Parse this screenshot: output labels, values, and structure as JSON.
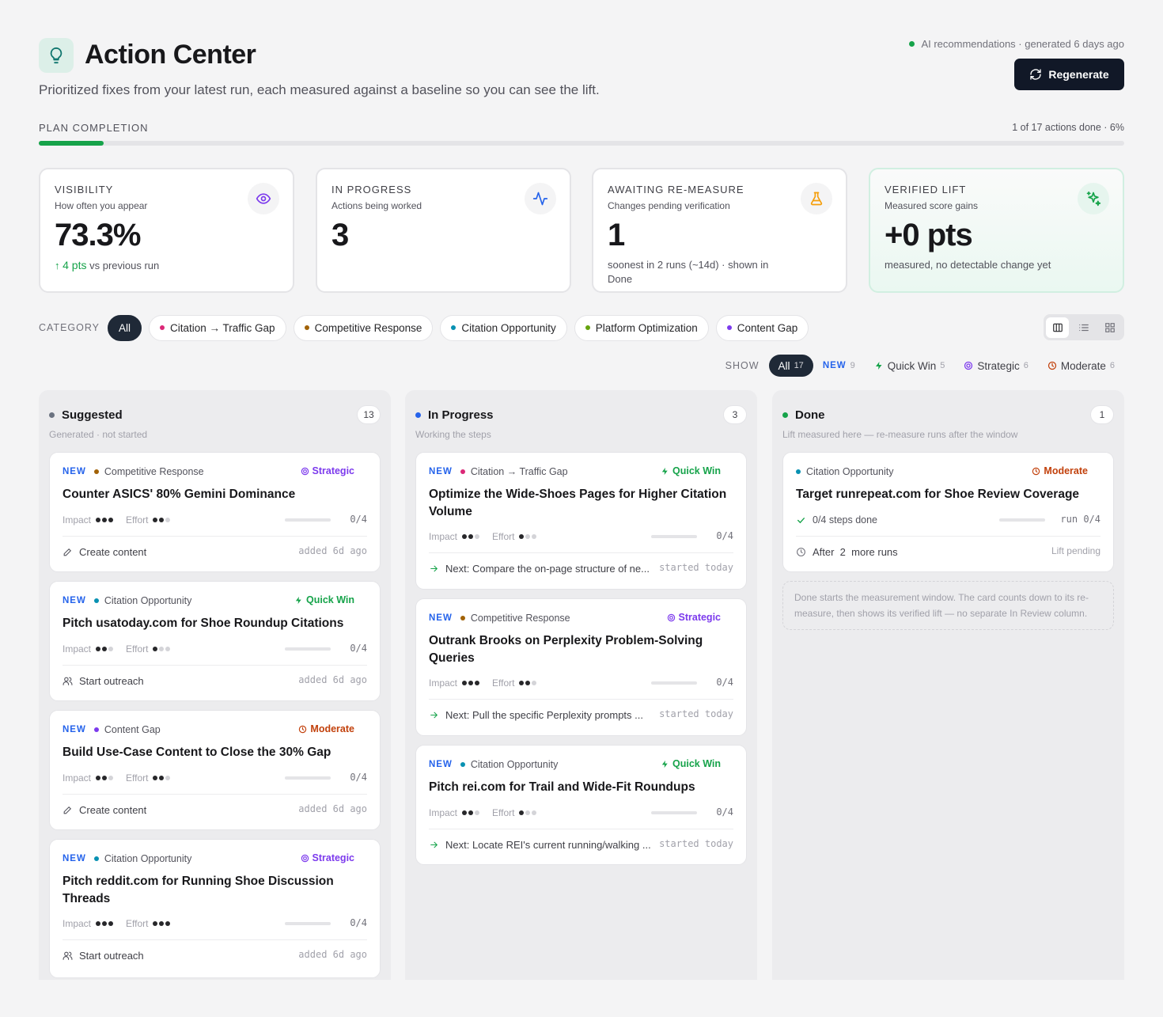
{
  "header": {
    "title": "Action Center",
    "subtitle": "Prioritized fixes from your latest run, each measured against a baseline so you can see the lift.",
    "generated": "AI recommendations · generated 6 days ago",
    "regenerate_label": "Regenerate"
  },
  "plan": {
    "label": "PLAN COMPLETION",
    "status": "1 of 17 actions done · 6%",
    "progress": 0.06
  },
  "stats": [
    {
      "label": "VISIBILITY",
      "sub": "How often you appear",
      "value": "73.3%",
      "delta": "4 pts",
      "delta_suffix": "vs previous run",
      "icon": "eye-icon"
    },
    {
      "label": "IN PROGRESS",
      "sub": "Actions being worked",
      "value": "3",
      "icon": "activity-icon"
    },
    {
      "label": "AWAITING RE-MEASURE",
      "sub": "Changes pending verification",
      "value": "1",
      "foot": "soonest in 2 runs (~14d) · shown in Done",
      "icon": "flask-icon"
    },
    {
      "label": "VERIFIED LIFT",
      "sub": "Measured score gains",
      "value": "+0 pts",
      "foot": "measured, no detectable change yet",
      "icon": "sparkles-icon"
    }
  ],
  "category": {
    "label": "CATEGORY",
    "chips": [
      {
        "label": "All",
        "active": true
      },
      {
        "label": "Citation → Traffic Gap",
        "color": "#db2777"
      },
      {
        "label": "Competitive Response",
        "color": "#a16207"
      },
      {
        "label": "Citation Opportunity",
        "color": "#0891b2"
      },
      {
        "label": "Platform Optimization",
        "color": "#65a30d"
      },
      {
        "label": "Content Gap",
        "color": "#7c3aed"
      }
    ]
  },
  "show": {
    "label": "SHOW",
    "all": {
      "label": "All",
      "count": "17"
    },
    "new": {
      "label": "NEW",
      "count": "9"
    },
    "quick_win": {
      "label": "Quick Win",
      "count": "5"
    },
    "strategic": {
      "label": "Strategic",
      "count": "6"
    },
    "moderate": {
      "label": "Moderate",
      "count": "6"
    }
  },
  "columns": [
    {
      "title": "Suggested",
      "count": "13",
      "subtitle": "Generated · not started",
      "color": "#6b7280",
      "cards": [
        {
          "new": "NEW",
          "category": "Competitive Response",
          "cat_color": "#a16207",
          "tag": "Strategic",
          "title": "Counter ASICS' 80% Gemini Dominance",
          "impact": 3,
          "effort": 2,
          "steps": "0/4",
          "action": "Create content",
          "when": "added 6d ago"
        },
        {
          "new": "NEW",
          "category": "Citation Opportunity",
          "cat_color": "#0891b2",
          "tag": "Quick Win",
          "title": "Pitch usatoday.com for Shoe Roundup Citations",
          "impact": 2,
          "effort": 1,
          "steps": "0/4",
          "action": "Start outreach",
          "when": "added 6d ago"
        },
        {
          "new": "NEW",
          "category": "Content Gap",
          "cat_color": "#7c3aed",
          "tag": "Moderate",
          "title": "Build Use-Case Content to Close the 30% Gap",
          "impact": 2,
          "effort": 2,
          "steps": "0/4",
          "action": "Create content",
          "when": "added 6d ago"
        },
        {
          "new": "NEW",
          "category": "Citation Opportunity",
          "cat_color": "#0891b2",
          "tag": "Strategic",
          "title": "Pitch reddit.com for Running Shoe Discussion Threads",
          "impact": 3,
          "effort": 3,
          "steps": "0/4",
          "action": "Start outreach",
          "when": "added 6d ago"
        }
      ]
    },
    {
      "title": "In Progress",
      "count": "3",
      "subtitle": "Working the steps",
      "color": "#2563eb",
      "cards": [
        {
          "new": "NEW",
          "category": "Citation → Traffic Gap",
          "cat_color": "#db2777",
          "tag": "Quick Win",
          "title": "Optimize the Wide-Shoes Pages for Higher Citation Volume",
          "impact": 2,
          "effort": 1,
          "steps": "0/4",
          "action": "Next: Compare the on-page structure of ne...",
          "when": "started today"
        },
        {
          "new": "NEW",
          "category": "Competitive Response",
          "cat_color": "#a16207",
          "tag": "Strategic",
          "title": "Outrank Brooks on Perplexity Problem-Solving Queries",
          "impact": 3,
          "effort": 2,
          "steps": "0/4",
          "action": "Next: Pull the specific Perplexity prompts ...",
          "when": "started today"
        },
        {
          "new": "NEW",
          "category": "Citation Opportunity",
          "cat_color": "#0891b2",
          "tag": "Quick Win",
          "title": "Pitch rei.com for Trail and Wide-Fit Roundups",
          "impact": 2,
          "effort": 1,
          "steps": "0/4",
          "action": "Next: Locate REI's current running/walking ...",
          "when": "started today"
        }
      ]
    },
    {
      "title": "Done",
      "count": "1",
      "subtitle": "Lift measured here — re-measure runs after the window",
      "color": "#16a34a",
      "cards": [
        {
          "category": "Citation Opportunity",
          "cat_color": "#0891b2",
          "tag": "Moderate",
          "title": "Target runrepeat.com for Shoe Review Coverage",
          "steps_done": "0/4 steps done",
          "run": "run 0/4",
          "after": "After  2  more runs",
          "lift": "Lift pending"
        }
      ],
      "note": "Done starts the measurement window. The card counts down to its re-measure, then shows its verified lift — no separate In Review column."
    }
  ],
  "colors": {
    "accent": "#16a34a",
    "dark": "#111827",
    "new": "#2563eb"
  }
}
